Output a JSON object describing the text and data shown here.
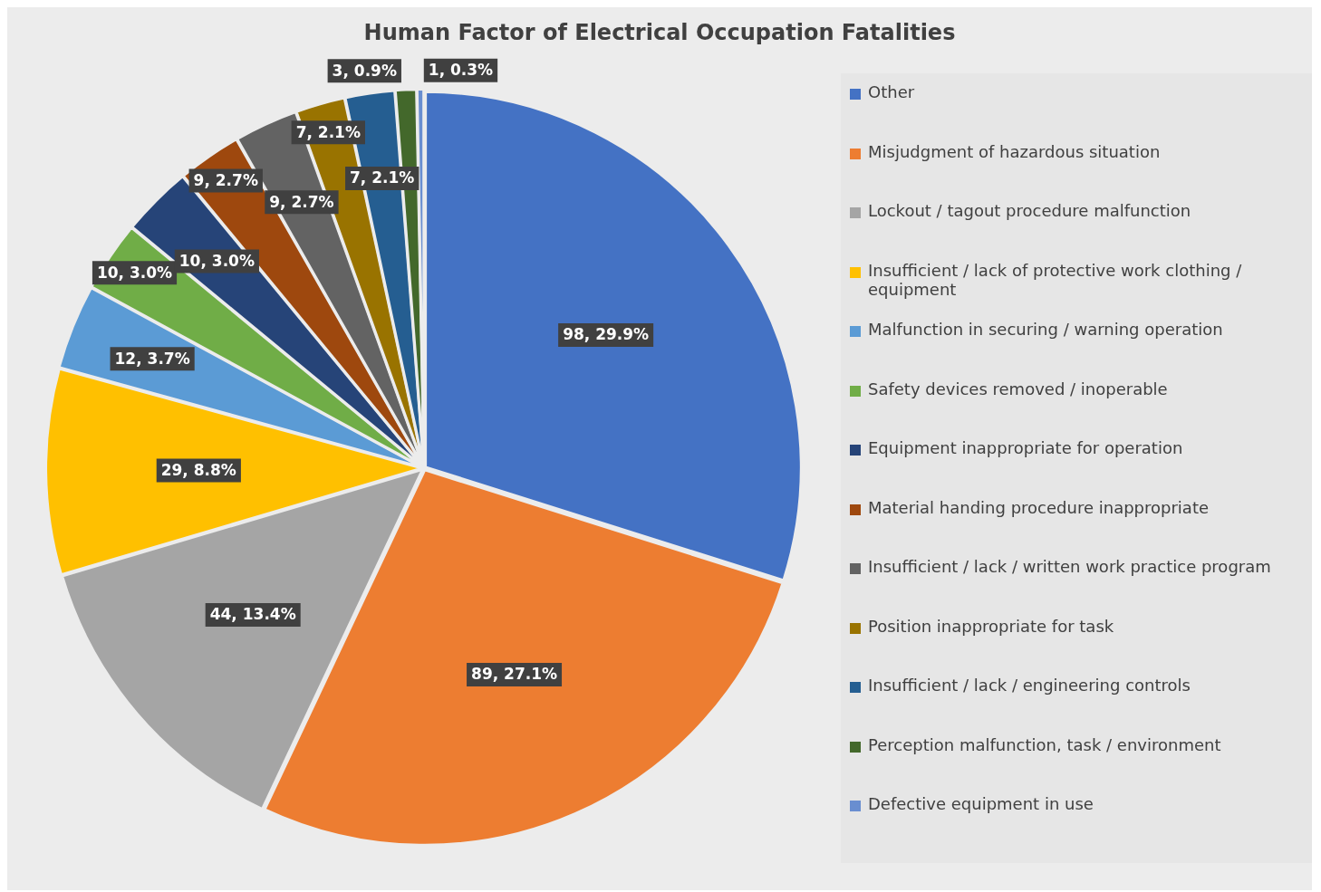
{
  "chart_data": {
    "type": "pie",
    "title": "Human Factor of Electrical Occupation Fatalities",
    "categories": [
      "Other",
      "Misjudgment of hazardous situation",
      "Lockout / tagout procedure malfunction",
      "Insufficient / lack of protective work clothing / equipment",
      "Malfunction in securing / warning operation",
      "Safety devices removed / inoperable",
      "Equipment inappropriate for operation",
      "Material handing procedure inappropriate",
      "Insufficient / lack / written work practice program",
      "Position inappropriate for task",
      "Insufficient / lack / engineering controls",
      "Perception malfunction, task / environment",
      "Defective equipment in use"
    ],
    "values": [
      98,
      89,
      44,
      29,
      12,
      10,
      10,
      9,
      9,
      7,
      7,
      3,
      1
    ],
    "value_labels": [
      "98, 29.9%",
      "89, 27.1%",
      "44, 13.4%",
      "29, 8.8%",
      "12, 3.7%",
      "10, 3.0%",
      "10, 3.0%",
      "9, 2.7%",
      "9, 2.7%",
      "7, 2.1%",
      "7, 2.1%",
      "3, 0.9%",
      "1, 0.3%"
    ],
    "colors": [
      "#4472c4",
      "#ed7d31",
      "#a5a5a5",
      "#ffc000",
      "#5b9bd5",
      "#70ad47",
      "#264478",
      "#9e480e",
      "#636363",
      "#997300",
      "#255e91",
      "#43682b",
      "#698ed0"
    ],
    "legend": "right"
  }
}
